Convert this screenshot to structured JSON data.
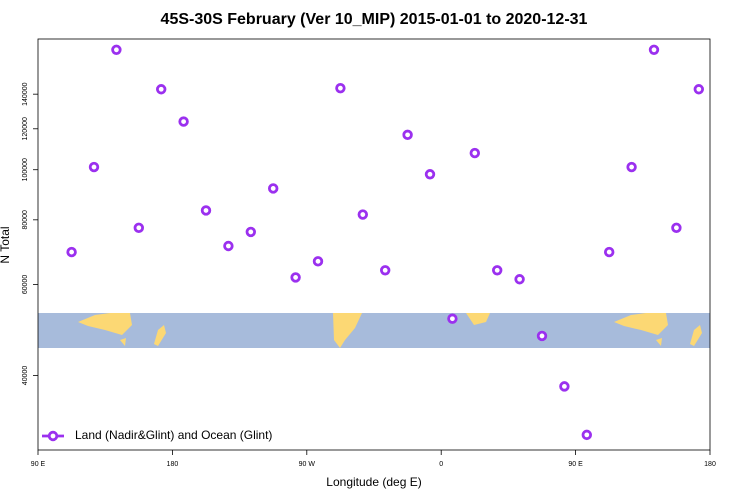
{
  "chart_data": {
    "type": "scatter",
    "title": "45S-30S February (Ver 10_MIP)   2015-01-01 to 2020-12-31",
    "x_label": "Longitude (deg E)",
    "y_label": "N Total",
    "xlim": [
      90,
      540
    ],
    "xticks": [
      {
        "value": 90,
        "label": "90 E"
      },
      180,
      {
        "value": 270,
        "label": "90 W"
      },
      {
        "value": 360,
        "label": "0"
      },
      {
        "value": 450,
        "label": "90 E"
      },
      {
        "value": 540,
        "label": "180"
      }
    ],
    "ylim": [
      28700,
      179000
    ],
    "log_y": true,
    "yticks": [
      40000,
      60000,
      80000,
      100000,
      120000,
      140000
    ],
    "legend": "lower left",
    "series": [
      {
        "name": "Land (Nadir&Glint) and Ocean (Glint)",
        "color": "#9b30ef",
        "x": [
          112.5,
          127.5,
          142.5,
          157.5,
          172.5,
          187.5,
          202.5,
          217.5,
          232.5,
          247.5,
          262.5,
          277.5,
          292.5,
          307.5,
          322.5,
          337.5,
          352.5,
          367.5,
          382.5,
          397.5,
          412.5,
          427.5,
          442.5,
          457.5,
          472.5,
          487.5,
          502.5,
          517.5,
          532.5
        ],
        "values": [
          69300,
          101200,
          170600,
          77200,
          143100,
          123900,
          83400,
          71200,
          75800,
          92000,
          61900,
          66500,
          143800,
          81900,
          63900,
          116800,
          98000,
          51500,
          107700,
          63900,
          61400,
          47700,
          38100,
          30700,
          69300,
          101200,
          170600,
          77200,
          143100
        ]
      }
    ]
  }
}
